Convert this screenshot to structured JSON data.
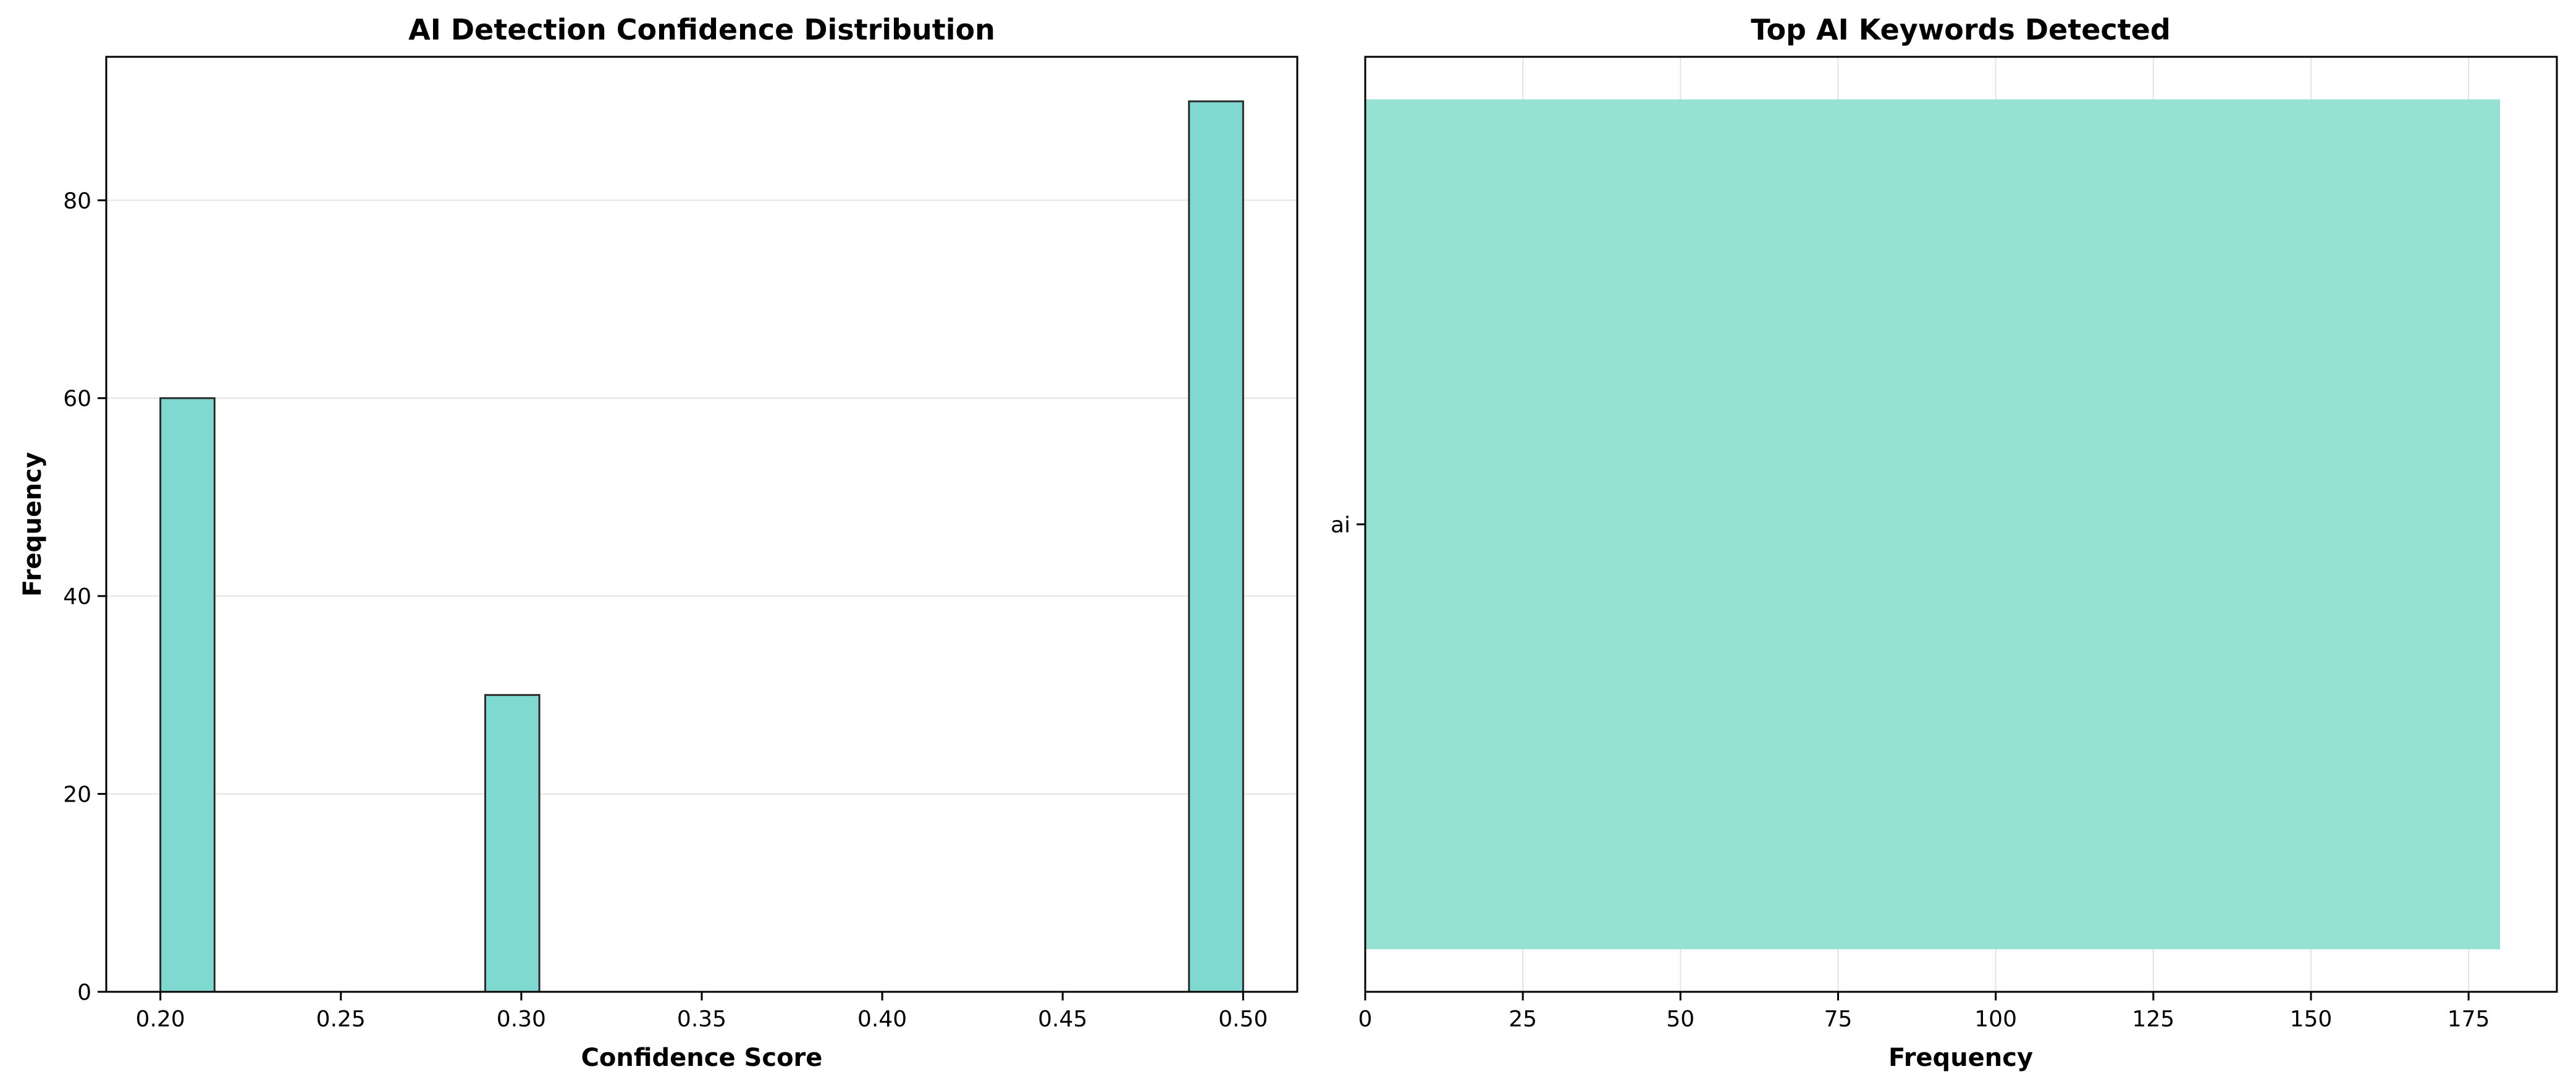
{
  "chart_data": [
    {
      "type": "bar",
      "title": "AI Detection Confidence Distribution",
      "xlabel": "Confidence Score",
      "ylabel": "Frequency",
      "xlim": [
        0.185,
        0.515
      ],
      "ylim": [
        0,
        94.5
      ],
      "xticks": [
        "0.20",
        "0.25",
        "0.30",
        "0.35",
        "0.40",
        "0.45",
        "0.50"
      ],
      "yticks": [
        "0",
        "20",
        "40",
        "60",
        "80"
      ],
      "grid": "y",
      "bar_color": "#7fd9d1",
      "edge_color": "#2b2b2b",
      "bins": [
        {
          "x0": 0.2,
          "x1": 0.215,
          "value": 60
        },
        {
          "x0": 0.29,
          "x1": 0.305,
          "value": 30
        },
        {
          "x0": 0.485,
          "x1": 0.5,
          "value": 90
        }
      ]
    },
    {
      "type": "bar",
      "orientation": "horizontal",
      "title": "Top AI Keywords Detected",
      "xlabel": "Frequency",
      "ylabel": "",
      "xlim": [
        0,
        189
      ],
      "xticks": [
        "0",
        "25",
        "50",
        "75",
        "100",
        "125",
        "150",
        "175"
      ],
      "grid": "x",
      "bar_color": "#96e0d4",
      "categories": [
        "ai"
      ],
      "values": [
        180
      ]
    }
  ]
}
